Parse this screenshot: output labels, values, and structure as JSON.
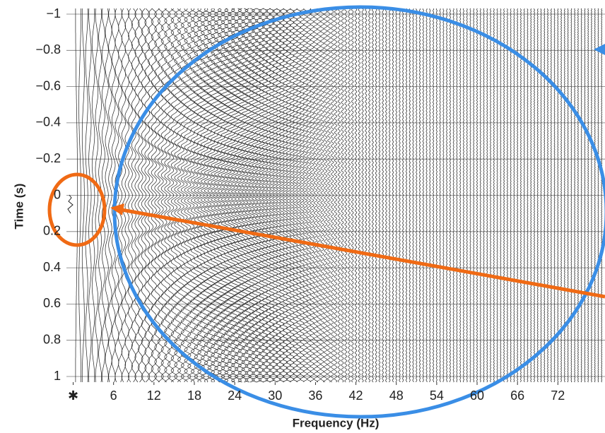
{
  "chart_data": {
    "type": "wiggle",
    "x_label": "Frequency (Hz)",
    "y_label": "Time (s)",
    "xlim": [
      -1,
      79
    ],
    "ylim": [
      -1,
      1
    ],
    "y_inverted": true,
    "xticks": [
      {
        "value": 0,
        "label": "✱"
      },
      6,
      12,
      18,
      24,
      30,
      36,
      42,
      48,
      54,
      60,
      66,
      72
    ],
    "yticks": [
      {
        "value": -1,
        "label": "−1"
      },
      {
        "value": -0.8,
        "label": "−0.8"
      },
      {
        "value": -0.6,
        "label": "−0.6"
      },
      {
        "value": -0.4,
        "label": "−0.4"
      },
      {
        "value": -0.2,
        "label": "−0.2"
      },
      0,
      0.2,
      0.4,
      0.6,
      0.8,
      1
    ],
    "grid": true,
    "color": "#222222"
  }
}
